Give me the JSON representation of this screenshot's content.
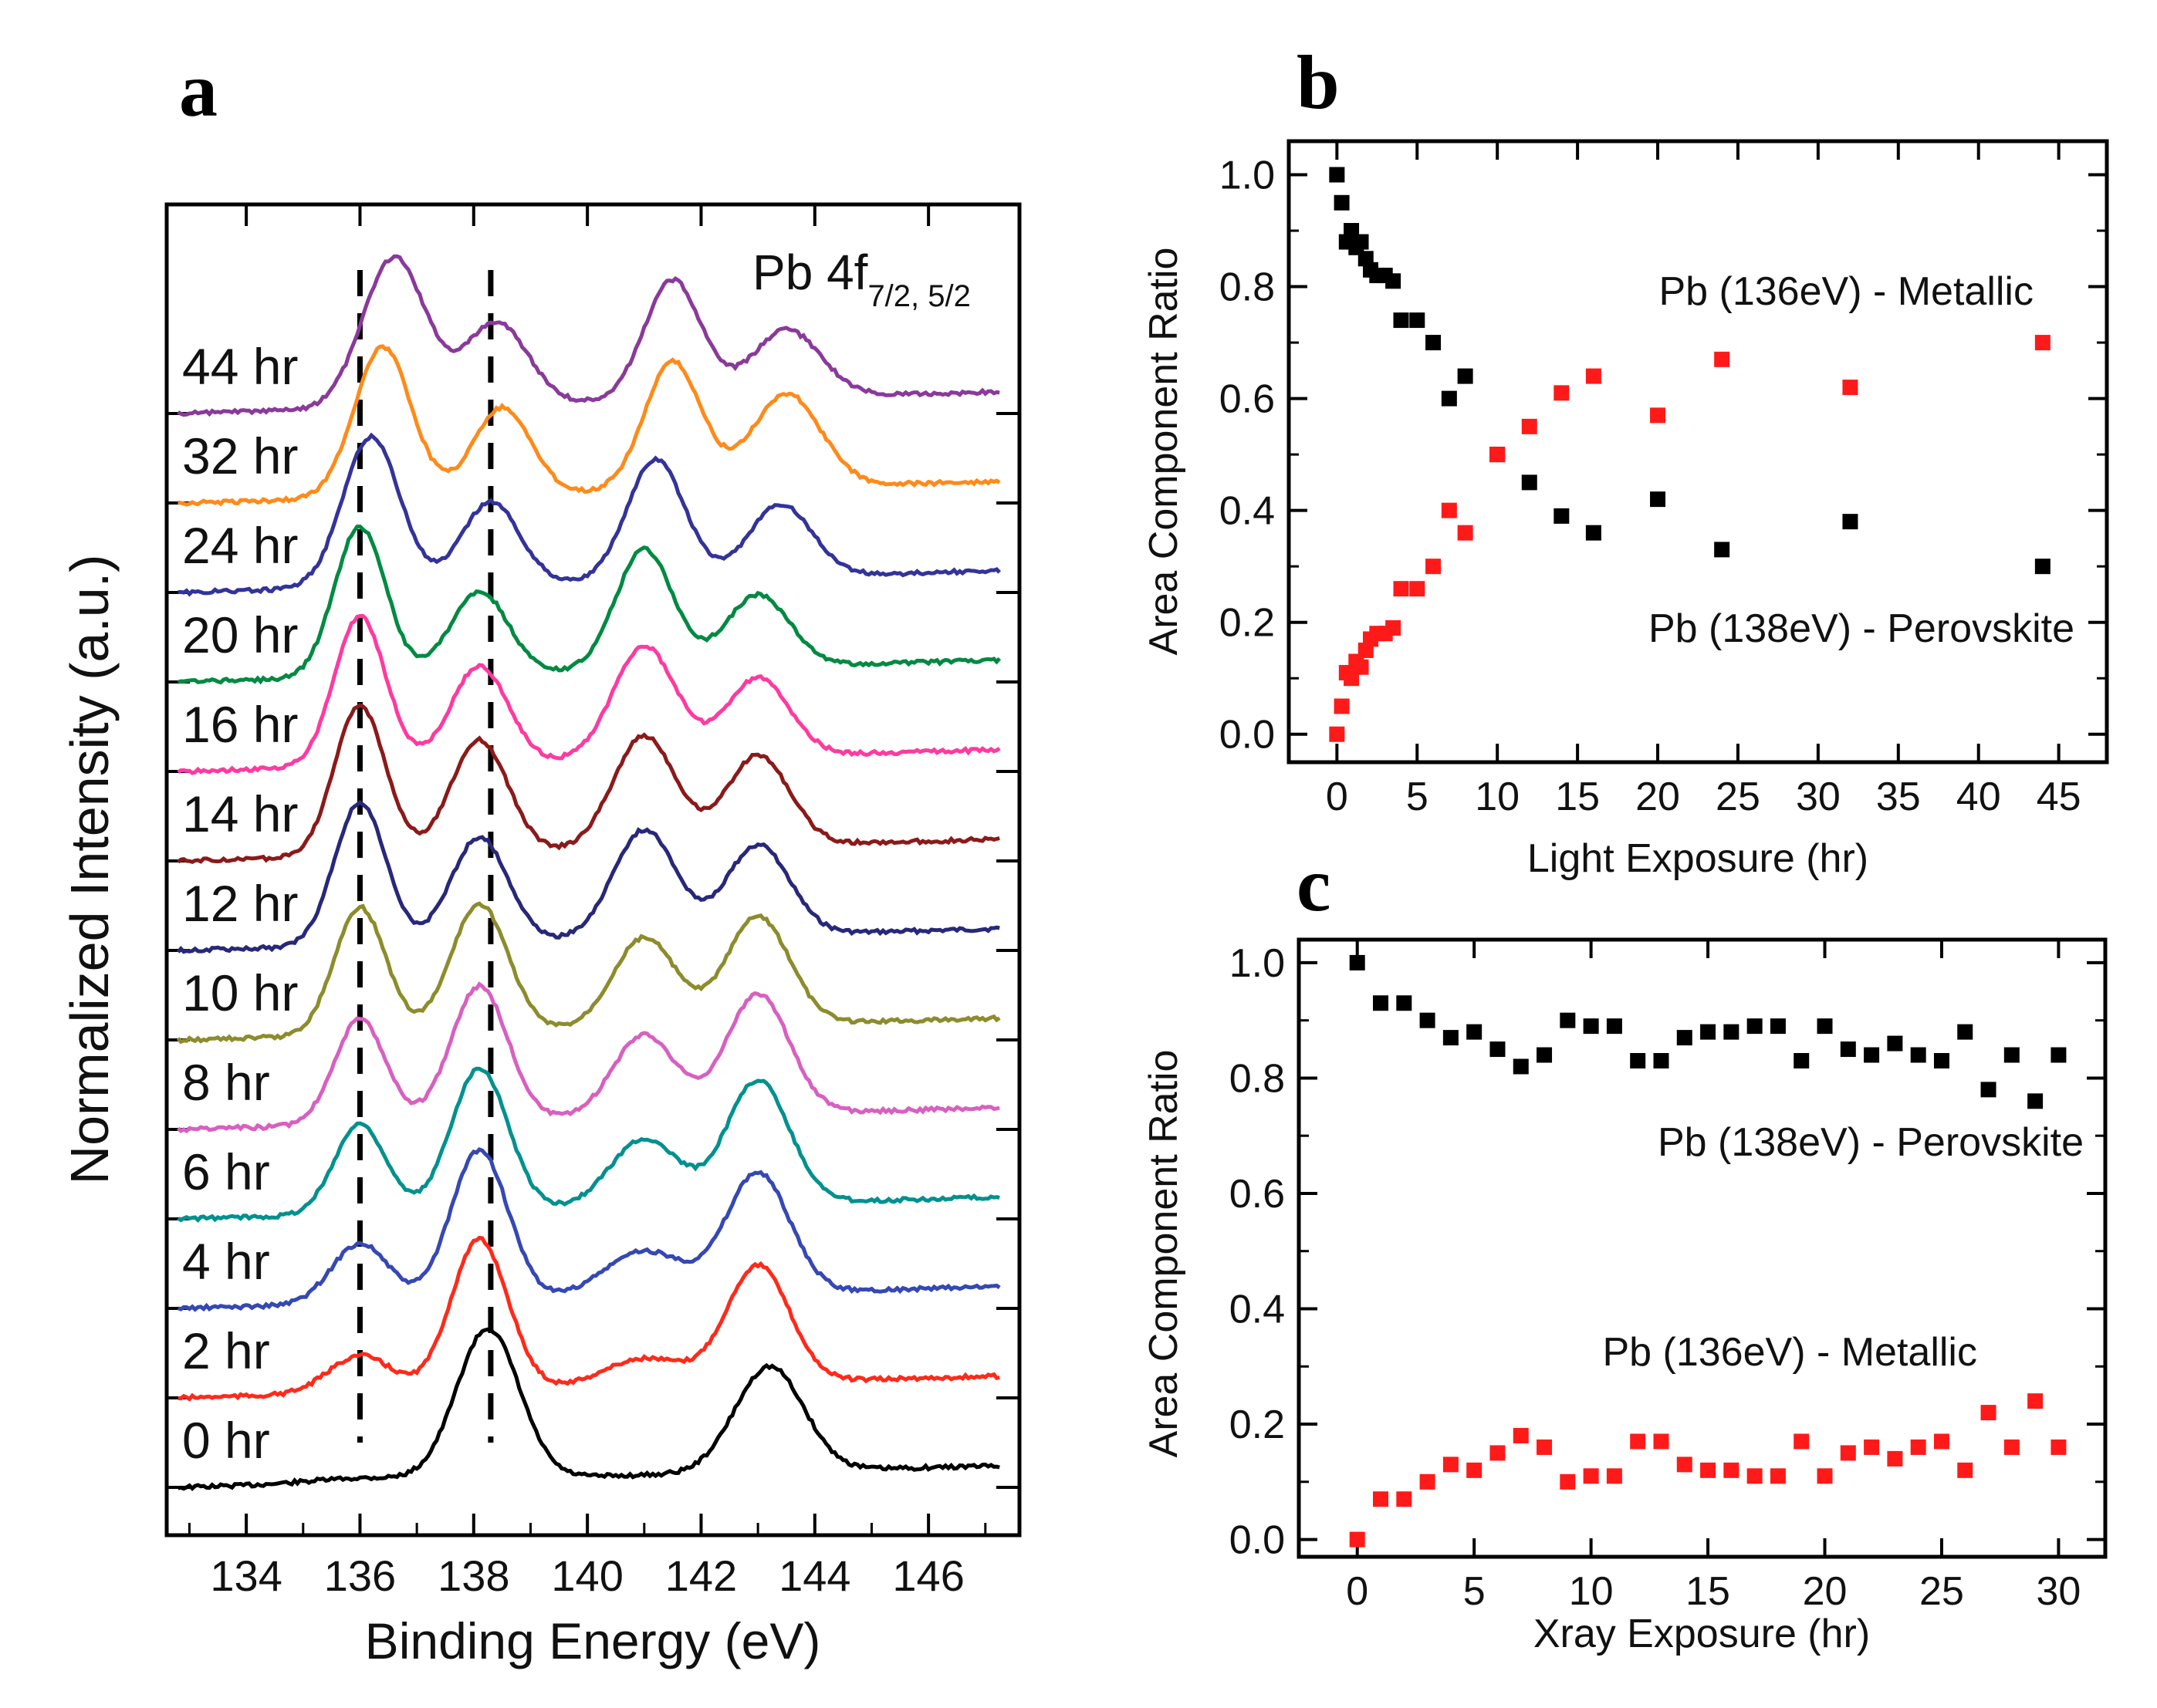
{
  "panel_labels": {
    "a": "a",
    "b": "b",
    "c": "c"
  },
  "chart_data": [
    {
      "panel": "a",
      "type": "line",
      "title": "Pb 4f",
      "title_sub": "7/2, 5/2",
      "xlabel": "Binding Energy (eV)",
      "ylabel": "Normalized Intensity (a.u.)",
      "xlim": [
        132.6,
        147.6
      ],
      "xticks": [
        134,
        136,
        138,
        140,
        142,
        144,
        146
      ],
      "dashed_lines_x": [
        136.0,
        138.3
      ],
      "series": [
        {
          "name": "0 hr",
          "color": "#000000",
          "peaks": [
            [
              136.0,
              0.03,
              0.9
            ],
            [
              138.25,
              1.0,
              0.55
            ],
            [
              143.2,
              0.7,
              0.6
            ]
          ]
        },
        {
          "name": "2 hr",
          "color": "#ff2a1a",
          "peaks": [
            [
              136.0,
              0.25,
              0.55
            ],
            [
              138.1,
              1.0,
              0.5
            ],
            [
              141.0,
              0.18,
              0.7
            ],
            [
              143.0,
              0.78,
              0.55
            ]
          ]
        },
        {
          "name": "4 hr",
          "color": "#3548b4",
          "peaks": [
            [
              136.0,
              0.4,
              0.5
            ],
            [
              138.1,
              1.0,
              0.5
            ],
            [
              141.0,
              0.3,
              0.7
            ],
            [
              143.0,
              0.8,
              0.55
            ]
          ]
        },
        {
          "name": "6 hr",
          "color": "#00918f",
          "peaks": [
            [
              136.0,
              0.6,
              0.45
            ],
            [
              138.1,
              0.95,
              0.5
            ],
            [
              141.0,
              0.45,
              0.6
            ],
            [
              143.0,
              0.82,
              0.55
            ]
          ]
        },
        {
          "name": "8 hr",
          "color": "#d860c0",
          "peaks": [
            [
              136.0,
              0.7,
              0.45
            ],
            [
              138.1,
              0.9,
              0.5
            ],
            [
              141.0,
              0.55,
              0.55
            ],
            [
              143.0,
              0.8,
              0.55
            ]
          ]
        },
        {
          "name": "10 hr",
          "color": "#8c8c2c",
          "peaks": [
            [
              136.0,
              0.85,
              0.45
            ],
            [
              138.1,
              0.85,
              0.5
            ],
            [
              141.0,
              0.6,
              0.55
            ],
            [
              143.0,
              0.72,
              0.55
            ]
          ]
        },
        {
          "name": "12 hr",
          "color": "#28287a",
          "peaks": [
            [
              136.0,
              0.95,
              0.45
            ],
            [
              138.1,
              0.7,
              0.5
            ],
            [
              141.0,
              0.72,
              0.55
            ],
            [
              143.0,
              0.6,
              0.55
            ]
          ]
        },
        {
          "name": "14 hr",
          "color": "#8b1a1a",
          "peaks": [
            [
              136.0,
              1.0,
              0.45
            ],
            [
              138.1,
              0.75,
              0.5
            ],
            [
              141.0,
              0.75,
              0.55
            ],
            [
              143.0,
              0.6,
              0.55
            ]
          ]
        },
        {
          "name": "16 hr",
          "color": "#ff3aa0",
          "peaks": [
            [
              136.0,
              1.0,
              0.45
            ],
            [
              138.1,
              0.65,
              0.5
            ],
            [
              141.0,
              0.75,
              0.55
            ],
            [
              143.0,
              0.52,
              0.55
            ]
          ]
        },
        {
          "name": "20 hr",
          "color": "#008a42",
          "peaks": [
            [
              136.0,
              1.0,
              0.45
            ],
            [
              138.1,
              0.55,
              0.5
            ],
            [
              141.0,
              0.8,
              0.5
            ],
            [
              143.0,
              0.48,
              0.55
            ]
          ]
        },
        {
          "name": "24 hr",
          "color": "#33339a",
          "peaks": [
            [
              136.2,
              1.0,
              0.5
            ],
            [
              138.3,
              0.55,
              0.5
            ],
            [
              141.2,
              0.8,
              0.5
            ],
            [
              143.4,
              0.48,
              0.55
            ]
          ]
        },
        {
          "name": "32 hr",
          "color": "#ff8a1a",
          "peaks": [
            [
              136.4,
              1.0,
              0.5
            ],
            [
              138.5,
              0.58,
              0.5
            ],
            [
              141.5,
              0.85,
              0.5
            ],
            [
              143.5,
              0.62,
              0.6
            ]
          ]
        },
        {
          "name": "44 hr",
          "color": "#8a3a9a",
          "peaks": [
            [
              136.6,
              1.0,
              0.55
            ],
            [
              138.4,
              0.55,
              0.55
            ],
            [
              141.5,
              0.8,
              0.5
            ],
            [
              143.5,
              0.45,
              0.6
            ]
          ]
        }
      ]
    },
    {
      "panel": "b",
      "type": "scatter",
      "xlabel": "Light Exposure (hr)",
      "ylabel": "Area Component Ratio",
      "xlim": [
        -3,
        48
      ],
      "ylim": [
        -0.05,
        1.06
      ],
      "xticks": [
        0,
        5,
        10,
        15,
        20,
        25,
        30,
        35,
        40,
        45
      ],
      "yticks": [
        0.0,
        0.2,
        0.4,
        0.6,
        0.8,
        1.0
      ],
      "annotations": [
        "Pb (136eV) - Metallic",
        "Pb (138eV) - Perovskite"
      ],
      "series": [
        {
          "name": "Pb (138eV) - Perovskite",
          "color": "#000000",
          "x": [
            0,
            0.3,
            0.6,
            0.9,
            1.2,
            1.5,
            1.8,
            2.1,
            2.5,
            3.0,
            3.5,
            4.0,
            5.0,
            6.0,
            7.0,
            8.0,
            10,
            12,
            14,
            16,
            20,
            24,
            32,
            44
          ],
          "y": [
            1.0,
            0.95,
            0.88,
            0.9,
            0.87,
            0.88,
            0.85,
            0.83,
            0.82,
            0.82,
            0.81,
            0.74,
            0.74,
            0.7,
            0.6,
            0.64,
            0.5,
            0.45,
            0.39,
            0.36,
            0.42,
            0.33,
            0.38,
            0.3
          ]
        },
        {
          "name": "Pb (136eV) - Metallic",
          "color": "#ff1a1a",
          "x": [
            0,
            0.3,
            0.6,
            0.9,
            1.2,
            1.5,
            1.8,
            2.1,
            2.5,
            3.0,
            3.5,
            4.0,
            5.0,
            6.0,
            7.0,
            8.0,
            10,
            12,
            14,
            16,
            20,
            24,
            32,
            44
          ],
          "y": [
            0.0,
            0.05,
            0.11,
            0.1,
            0.13,
            0.12,
            0.15,
            0.17,
            0.18,
            0.18,
            0.19,
            0.26,
            0.26,
            0.3,
            0.4,
            0.36,
            0.5,
            0.55,
            0.61,
            0.64,
            0.57,
            0.67,
            0.62,
            0.7
          ]
        }
      ]
    },
    {
      "panel": "c",
      "type": "scatter",
      "xlabel": "Xray Exposure (hr)",
      "ylabel": "Area Component Ratio",
      "xlim": [
        -2.5,
        32
      ],
      "ylim": [
        -0.03,
        1.04
      ],
      "xticks": [
        0,
        5,
        10,
        15,
        20,
        25,
        30
      ],
      "yticks": [
        0.0,
        0.2,
        0.4,
        0.6,
        0.8,
        1.0
      ],
      "annotations": [
        "Pb (138eV) - Perovskite",
        "Pb (136eV) - Metallic"
      ],
      "series": [
        {
          "name": "Pb (138eV) - Perovskite",
          "color": "#000000",
          "x": [
            0,
            1,
            2,
            3,
            4,
            5,
            6,
            7,
            8,
            9,
            10,
            11,
            12,
            13,
            14,
            15,
            16,
            17,
            18,
            19,
            20,
            21,
            22,
            23,
            24,
            25,
            26,
            27,
            28,
            29,
            30
          ],
          "y": [
            1.0,
            0.93,
            0.93,
            0.9,
            0.87,
            0.88,
            0.85,
            0.82,
            0.84,
            0.9,
            0.89,
            0.89,
            0.83,
            0.83,
            0.87,
            0.88,
            0.88,
            0.89,
            0.89,
            0.83,
            0.89,
            0.85,
            0.84,
            0.86,
            0.84,
            0.83,
            0.88,
            0.78,
            0.84,
            0.76,
            0.84
          ]
        },
        {
          "name": "Pb (136eV) - Metallic",
          "color": "#ff1a1a",
          "x": [
            0,
            1,
            2,
            3,
            4,
            5,
            6,
            7,
            8,
            9,
            10,
            11,
            12,
            13,
            14,
            15,
            16,
            17,
            18,
            19,
            20,
            21,
            22,
            23,
            24,
            25,
            26,
            27,
            28,
            29,
            30
          ],
          "y": [
            0.0,
            0.07,
            0.07,
            0.1,
            0.13,
            0.12,
            0.15,
            0.18,
            0.16,
            0.1,
            0.11,
            0.11,
            0.17,
            0.17,
            0.13,
            0.12,
            0.12,
            0.11,
            0.11,
            0.17,
            0.11,
            0.15,
            0.16,
            0.14,
            0.16,
            0.17,
            0.12,
            0.22,
            0.16,
            0.24,
            0.16
          ]
        }
      ]
    }
  ]
}
